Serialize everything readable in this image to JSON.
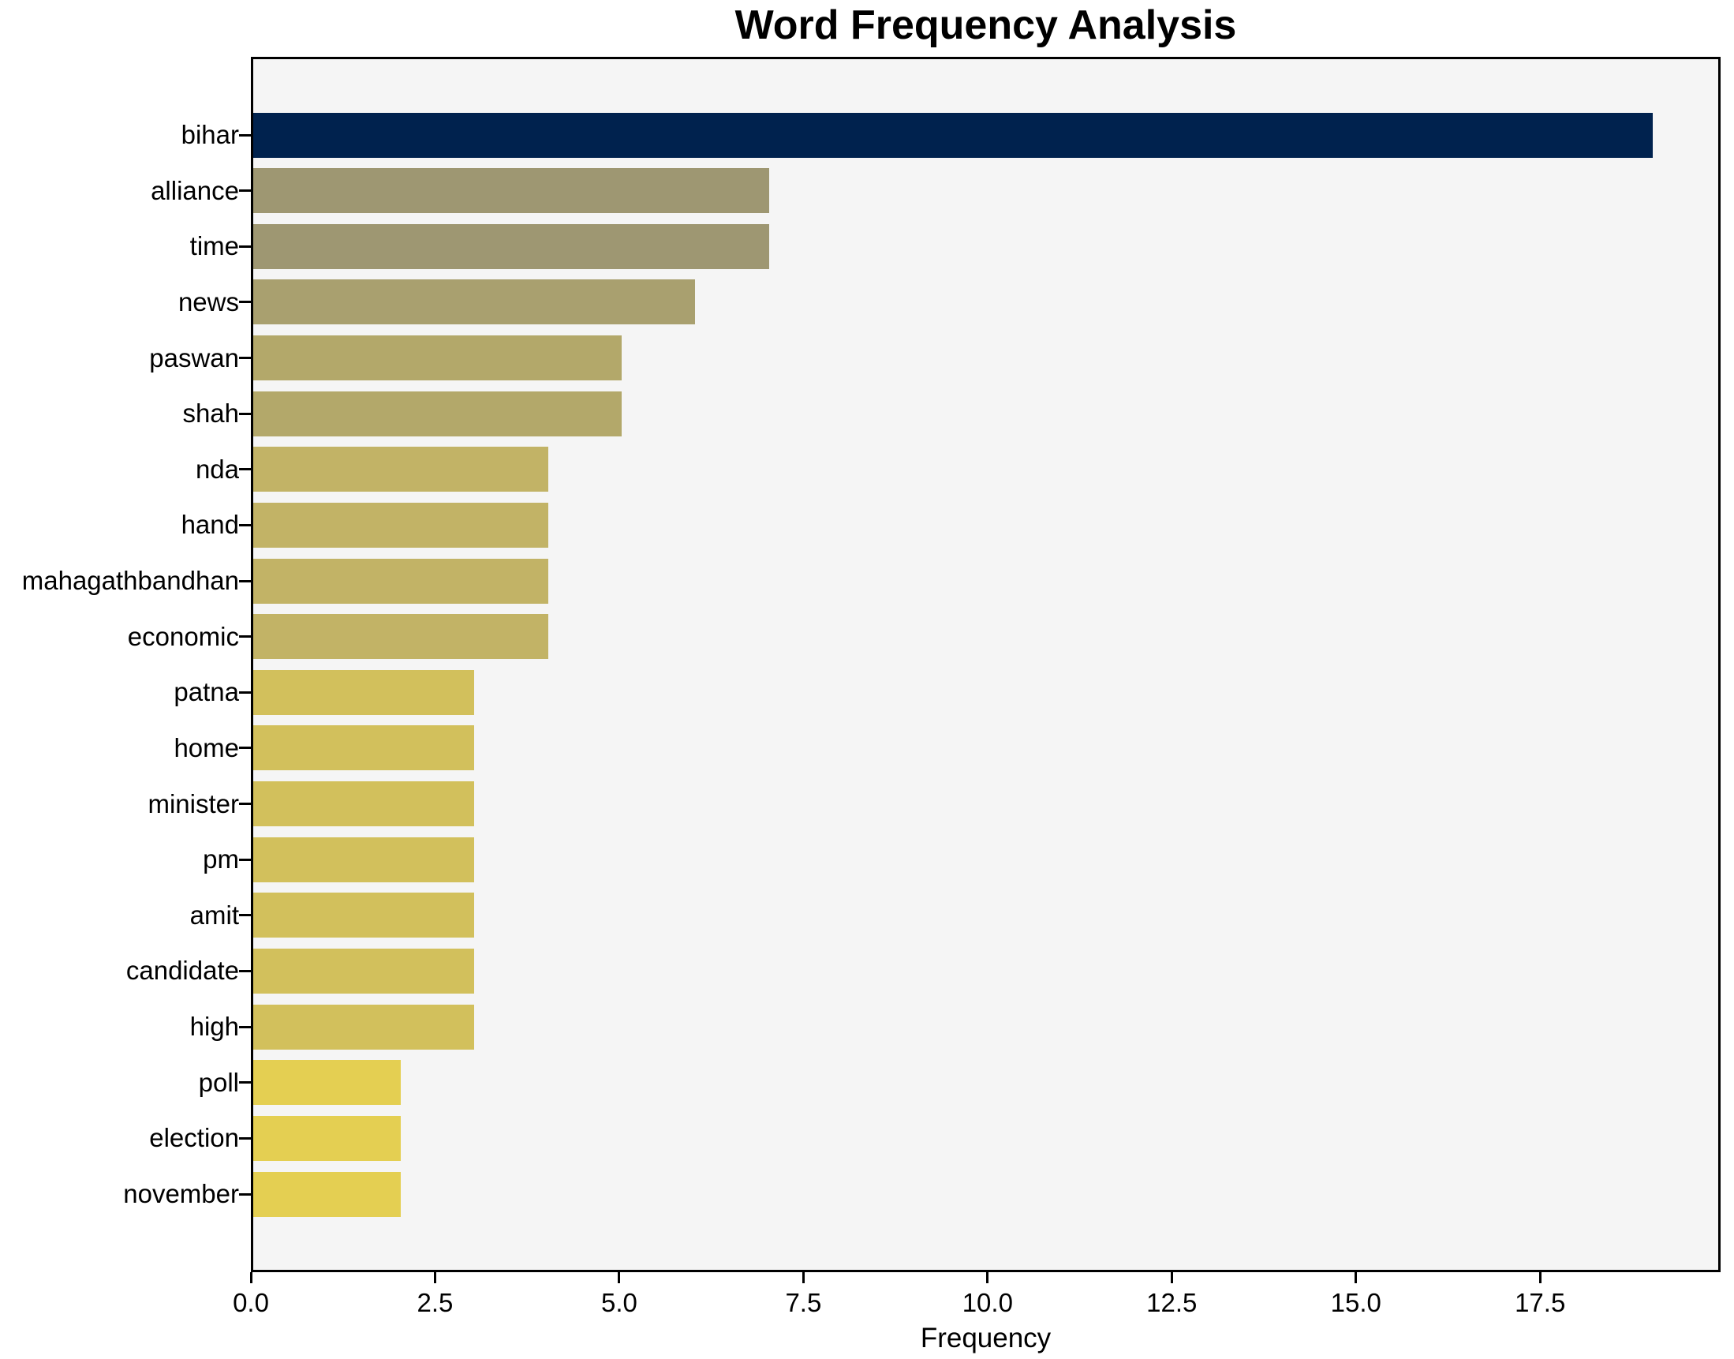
{
  "chart_data": {
    "type": "bar",
    "orientation": "horizontal",
    "title": "Word Frequency Analysis",
    "xlabel": "Frequency",
    "ylabel": "",
    "categories": [
      "bihar",
      "alliance",
      "time",
      "news",
      "paswan",
      "shah",
      "nda",
      "hand",
      "mahagathbandhan",
      "economic",
      "patna",
      "home",
      "minister",
      "pm",
      "amit",
      "candidate",
      "high",
      "poll",
      "election",
      "november"
    ],
    "values": [
      19,
      7,
      7,
      6,
      5,
      5,
      4,
      4,
      4,
      4,
      3,
      3,
      3,
      3,
      3,
      3,
      3,
      2,
      2,
      2
    ],
    "bar_colors": [
      "#00224e",
      "#9e9772",
      "#9e9772",
      "#a9a06f",
      "#b3a86a",
      "#b3a86a",
      "#c2b366",
      "#c2b366",
      "#c2b366",
      "#c2b366",
      "#d2c05c",
      "#d2c05c",
      "#d2c05c",
      "#d2c05c",
      "#d2c05c",
      "#d2c05c",
      "#d2c05c",
      "#e4cf52",
      "#e4cf52",
      "#e4cf52"
    ],
    "xticks": [
      0.0,
      2.5,
      5.0,
      7.5,
      10.0,
      12.5,
      15.0,
      17.5
    ],
    "xtick_labels": [
      "0.0",
      "2.5",
      "5.0",
      "7.5",
      "10.0",
      "12.5",
      "15.0",
      "17.5"
    ],
    "xlim": [
      0,
      19.95
    ],
    "grid": false,
    "legend": null,
    "colormap": "cividis",
    "plot_bg": "#f5f5f5",
    "figure_bg": "#ffffff",
    "spine_color": "#000000"
  }
}
